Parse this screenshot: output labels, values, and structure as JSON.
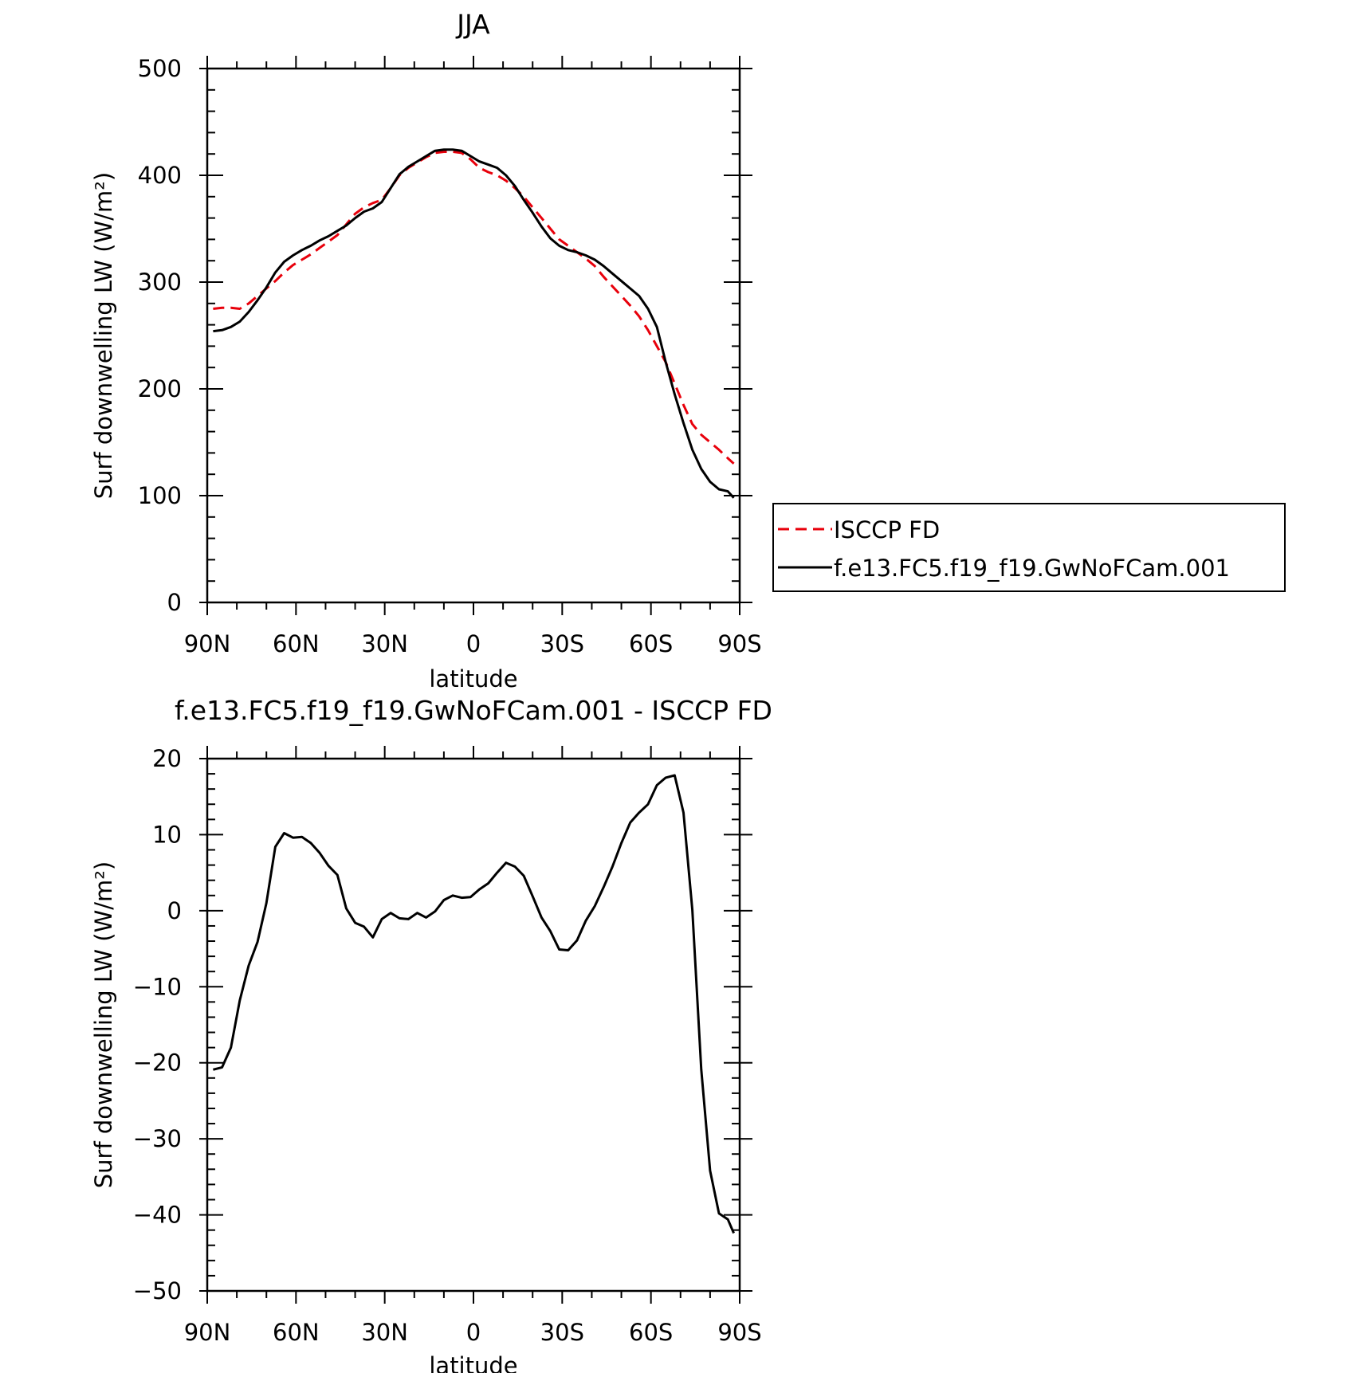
{
  "colors": {
    "isccp": "#e8000b",
    "model": "#000000",
    "axes": "#000000"
  },
  "chart_data": [
    {
      "type": "line",
      "title": "JJA",
      "xlabel": "latitude",
      "ylabel": "Surf downwelling LW (W/m²)",
      "xlim": [
        -90,
        90
      ],
      "ylim": [
        0,
        500
      ],
      "xticks": [
        -90,
        -60,
        -30,
        0,
        30,
        60,
        90
      ],
      "xtick_labels": [
        "90N",
        "60N",
        "30N",
        "0",
        "30S",
        "60S",
        "90S"
      ],
      "yticks": [
        0,
        100,
        200,
        300,
        400,
        500
      ],
      "ytick_labels": [
        "0",
        "100",
        "200",
        "300",
        "400",
        "500"
      ],
      "grid": false,
      "legend_position": "right",
      "series": [
        {
          "name": "ISCCP FD",
          "style": "dashed",
          "color": "#e8000b",
          "x": [
            -88,
            -85,
            -82,
            -79,
            -76,
            -73,
            -70,
            -67,
            -64,
            -61,
            -58,
            -55,
            -52,
            -49,
            -46,
            -43,
            -40,
            -37,
            -34,
            -31,
            -28,
            -25,
            -22,
            -19,
            -16,
            -13,
            -10,
            -7,
            -4,
            -1,
            2,
            5,
            8,
            11,
            14,
            17,
            20,
            23,
            26,
            29,
            32,
            35,
            38,
            41,
            44,
            47,
            50,
            53,
            56,
            59,
            62,
            65,
            68,
            71,
            74,
            77,
            80,
            83,
            86,
            88
          ],
          "values": [
            275,
            276,
            276,
            275,
            280,
            287,
            294,
            301,
            309,
            316,
            321,
            326,
            332,
            338,
            344,
            354,
            364,
            370,
            374,
            377,
            388,
            400,
            407,
            412,
            417,
            421,
            422,
            422,
            421,
            415,
            407,
            403,
            400,
            395,
            388,
            380,
            370,
            360,
            350,
            340,
            334,
            328,
            322,
            315,
            305,
            296,
            287,
            278,
            268,
            255,
            240,
            225,
            205,
            185,
            167,
            157,
            150,
            143,
            135,
            130
          ]
        },
        {
          "name": "f.e13.FC5.f19_f19.GwNoFCam.001",
          "style": "solid",
          "color": "#000000",
          "x": [
            -88,
            -85,
            -82,
            -79,
            -76,
            -73,
            -70,
            -67,
            -64,
            -61,
            -58,
            -55,
            -52,
            -49,
            -46,
            -43,
            -40,
            -37,
            -34,
            -31,
            -28,
            -25,
            -22,
            -19,
            -16,
            -13,
            -10,
            -7,
            -4,
            -1,
            2,
            5,
            8,
            11,
            14,
            17,
            20,
            23,
            26,
            29,
            32,
            35,
            38,
            41,
            44,
            47,
            50,
            53,
            56,
            59,
            62,
            65,
            68,
            71,
            74,
            77,
            80,
            83,
            86,
            88
          ],
          "values": [
            254,
            255,
            258,
            263,
            272,
            283,
            295,
            309,
            319,
            325,
            330,
            334,
            339,
            343,
            348,
            353,
            360,
            366,
            369,
            375,
            388,
            401,
            408,
            413,
            418,
            423,
            424,
            424,
            423,
            418,
            413,
            410,
            407,
            400,
            390,
            377,
            365,
            352,
            341,
            334,
            330,
            328,
            325,
            321,
            315,
            308,
            301,
            294,
            287,
            275,
            258,
            225,
            195,
            168,
            143,
            125,
            113,
            106,
            104,
            98
          ]
        }
      ]
    },
    {
      "type": "line",
      "title": "f.e13.FC5.f19_f19.GwNoFCam.001 - ISCCP FD",
      "xlabel": "latitude",
      "ylabel": "Surf downwelling LW (W/m²)",
      "xlim": [
        -90,
        90
      ],
      "ylim": [
        -50,
        20
      ],
      "xticks": [
        -90,
        -60,
        -30,
        0,
        30,
        60,
        90
      ],
      "xtick_labels": [
        "90N",
        "60N",
        "30N",
        "0",
        "30S",
        "60S",
        "90S"
      ],
      "yticks": [
        -50,
        -40,
        -30,
        -20,
        -10,
        0,
        10,
        20
      ],
      "ytick_labels": [
        "−50",
        "−40",
        "−30",
        "−20",
        "−10",
        "0",
        "10",
        "20"
      ],
      "grid": false,
      "series": [
        {
          "style": "solid",
          "color": "#000000",
          "x": [
            -88,
            -85,
            -82,
            -79,
            -76,
            -73,
            -70,
            -67,
            -64,
            -61,
            -58,
            -55,
            -52,
            -49,
            -46,
            -43,
            -40,
            -37,
            -34,
            -31,
            -28,
            -25,
            -22,
            -19,
            -16,
            -13,
            -10,
            -7,
            -4,
            -1,
            2,
            5,
            8,
            11,
            14,
            17,
            20,
            23,
            26,
            29,
            32,
            35,
            38,
            41,
            44,
            47,
            50,
            53,
            56,
            59,
            62,
            65,
            68,
            71,
            74,
            77,
            80,
            83,
            86,
            88
          ],
          "values": [
            -20.9,
            -20.6,
            -18.0,
            -11.8,
            -7.2,
            -4.1,
            1.0,
            8.4,
            10.2,
            9.6,
            9.7,
            8.9,
            7.6,
            5.9,
            4.7,
            0.3,
            -1.6,
            -2.1,
            -3.5,
            -1.1,
            -0.3,
            -1.0,
            -1.1,
            -0.3,
            -0.9,
            -0.1,
            1.4,
            2.0,
            1.7,
            1.8,
            2.8,
            3.6,
            5.0,
            6.3,
            5.8,
            4.6,
            1.9,
            -0.9,
            -2.7,
            -5.1,
            -5.2,
            -3.9,
            -1.3,
            0.6,
            3.1,
            5.8,
            8.9,
            11.6,
            12.9,
            14.0,
            16.5,
            17.5,
            17.8,
            12.9,
            0.1,
            -20.9,
            -34.2,
            -39.8,
            -40.6,
            -42.4
          ]
        }
      ]
    }
  ],
  "legend": {
    "items": [
      {
        "label": "ISCCP FD",
        "style": "dashed",
        "color": "#e8000b"
      },
      {
        "label": "f.e13.FC5.f19_f19.GwNoFCam.001",
        "style": "solid",
        "color": "#000000"
      }
    ]
  }
}
